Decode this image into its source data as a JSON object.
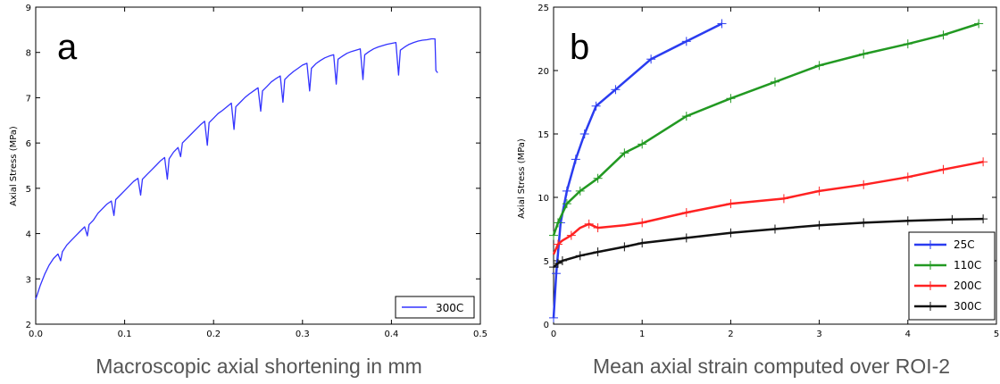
{
  "chart_data": [
    {
      "type": "line",
      "panel_label": "a",
      "caption": "Macroscopic axial shortening in mm",
      "xlabel": "",
      "ylabel": "Axial Stress (MPa)",
      "xlim": [
        0.0,
        0.5
      ],
      "ylim": [
        2,
        9
      ],
      "xticks": [
        "0.0",
        "0.1",
        "0.2",
        "0.3",
        "0.4",
        "0.5"
      ],
      "yticks": [
        "2",
        "3",
        "4",
        "5",
        "6",
        "7",
        "8",
        "9"
      ],
      "legend_position": "bottom-right",
      "grid": false,
      "series": [
        {
          "name": "300C",
          "color": "#3333ff",
          "markers": false,
          "x": [
            0.0,
            0.005,
            0.01,
            0.015,
            0.02,
            0.025,
            0.028,
            0.03,
            0.035,
            0.04,
            0.045,
            0.05,
            0.055,
            0.058,
            0.06,
            0.065,
            0.07,
            0.075,
            0.08,
            0.085,
            0.088,
            0.09,
            0.095,
            0.1,
            0.105,
            0.11,
            0.115,
            0.118,
            0.12,
            0.125,
            0.13,
            0.135,
            0.14,
            0.145,
            0.148,
            0.15,
            0.155,
            0.16,
            0.163,
            0.165,
            0.17,
            0.175,
            0.18,
            0.185,
            0.19,
            0.193,
            0.195,
            0.2,
            0.205,
            0.21,
            0.215,
            0.22,
            0.223,
            0.225,
            0.23,
            0.235,
            0.24,
            0.245,
            0.25,
            0.253,
            0.255,
            0.26,
            0.265,
            0.27,
            0.275,
            0.278,
            0.28,
            0.285,
            0.29,
            0.295,
            0.3,
            0.305,
            0.308,
            0.31,
            0.315,
            0.32,
            0.325,
            0.33,
            0.335,
            0.338,
            0.34,
            0.345,
            0.35,
            0.355,
            0.36,
            0.365,
            0.368,
            0.37,
            0.375,
            0.38,
            0.385,
            0.39,
            0.395,
            0.4,
            0.405,
            0.408,
            0.41,
            0.415,
            0.42,
            0.425,
            0.43,
            0.435,
            0.44,
            0.445,
            0.449,
            0.45,
            0.452
          ],
          "y": [
            2.55,
            2.85,
            3.1,
            3.3,
            3.45,
            3.55,
            3.4,
            3.6,
            3.75,
            3.85,
            3.95,
            4.05,
            4.15,
            3.95,
            4.2,
            4.3,
            4.45,
            4.55,
            4.65,
            4.72,
            4.4,
            4.75,
            4.85,
            4.95,
            5.05,
            5.15,
            5.22,
            4.85,
            5.2,
            5.3,
            5.4,
            5.5,
            5.6,
            5.68,
            5.2,
            5.65,
            5.8,
            5.9,
            5.7,
            6.0,
            6.1,
            6.2,
            6.3,
            6.4,
            6.48,
            5.95,
            6.45,
            6.55,
            6.65,
            6.72,
            6.8,
            6.88,
            6.3,
            6.8,
            6.9,
            7.0,
            7.08,
            7.15,
            7.22,
            6.7,
            7.15,
            7.25,
            7.35,
            7.42,
            7.48,
            6.9,
            7.4,
            7.5,
            7.58,
            7.65,
            7.72,
            7.76,
            7.15,
            7.65,
            7.75,
            7.82,
            7.88,
            7.92,
            7.95,
            7.3,
            7.85,
            7.92,
            7.98,
            8.02,
            8.05,
            8.08,
            7.4,
            7.95,
            8.02,
            8.08,
            8.12,
            8.15,
            8.18,
            8.2,
            8.22,
            7.5,
            8.05,
            8.12,
            8.18,
            8.22,
            8.25,
            8.27,
            8.28,
            8.3,
            8.3,
            7.6,
            7.55
          ]
        }
      ]
    },
    {
      "type": "line",
      "panel_label": "b",
      "caption": "Mean axial strain computed over ROI-2",
      "xlabel": "",
      "ylabel": "Axial Stress (MPa)",
      "xlim": [
        0,
        5
      ],
      "ylim": [
        0,
        25
      ],
      "xticks": [
        "0",
        "1",
        "2",
        "3",
        "4",
        "5"
      ],
      "yticks": [
        "0",
        "5",
        "10",
        "15",
        "20",
        "25"
      ],
      "legend_position": "bottom-right",
      "grid": false,
      "series": [
        {
          "name": "25C",
          "color": "#2a3cf0",
          "markers": true,
          "x": [
            0.0,
            0.03,
            0.08,
            0.15,
            0.25,
            0.35,
            0.48,
            0.7,
            1.1,
            1.5,
            1.9
          ],
          "y": [
            0.5,
            4.0,
            8.0,
            10.5,
            13.0,
            15.0,
            17.2,
            18.5,
            20.9,
            22.3,
            23.7
          ]
        },
        {
          "name": "110C",
          "color": "#229922",
          "markers": true,
          "x": [
            0.0,
            0.05,
            0.15,
            0.3,
            0.5,
            0.8,
            1.0,
            1.5,
            2.0,
            2.5,
            3.0,
            3.5,
            4.0,
            4.4,
            4.8
          ],
          "y": [
            7.0,
            8.0,
            9.5,
            10.5,
            11.5,
            13.5,
            14.2,
            16.4,
            17.8,
            19.1,
            20.4,
            21.3,
            22.1,
            22.8,
            23.7
          ]
        },
        {
          "name": "200C",
          "color": "#ff2222",
          "markers": true,
          "x": [
            0.0,
            0.05,
            0.1,
            0.2,
            0.3,
            0.4,
            0.5,
            0.8,
            1.0,
            1.5,
            2.0,
            2.6,
            3.0,
            3.5,
            4.0,
            4.4,
            4.85
          ],
          "y": [
            5.5,
            6.3,
            6.6,
            7.0,
            7.6,
            7.9,
            7.6,
            7.8,
            8.0,
            8.8,
            9.5,
            9.9,
            10.5,
            11.0,
            11.6,
            12.2,
            12.8
          ],
          "point_markers": [
            1,
            3,
            5,
            6,
            8,
            9,
            10,
            11,
            12,
            13,
            14,
            15,
            16
          ]
        },
        {
          "name": "300C",
          "color": "#111111",
          "markers": true,
          "x": [
            0.0,
            0.05,
            0.1,
            0.3,
            0.5,
            0.8,
            1.0,
            1.5,
            2.0,
            2.5,
            3.0,
            3.5,
            4.0,
            4.5,
            4.85
          ],
          "y": [
            4.5,
            4.8,
            5.0,
            5.4,
            5.7,
            6.1,
            6.4,
            6.8,
            7.2,
            7.5,
            7.8,
            8.0,
            8.15,
            8.25,
            8.3
          ]
        }
      ]
    }
  ]
}
